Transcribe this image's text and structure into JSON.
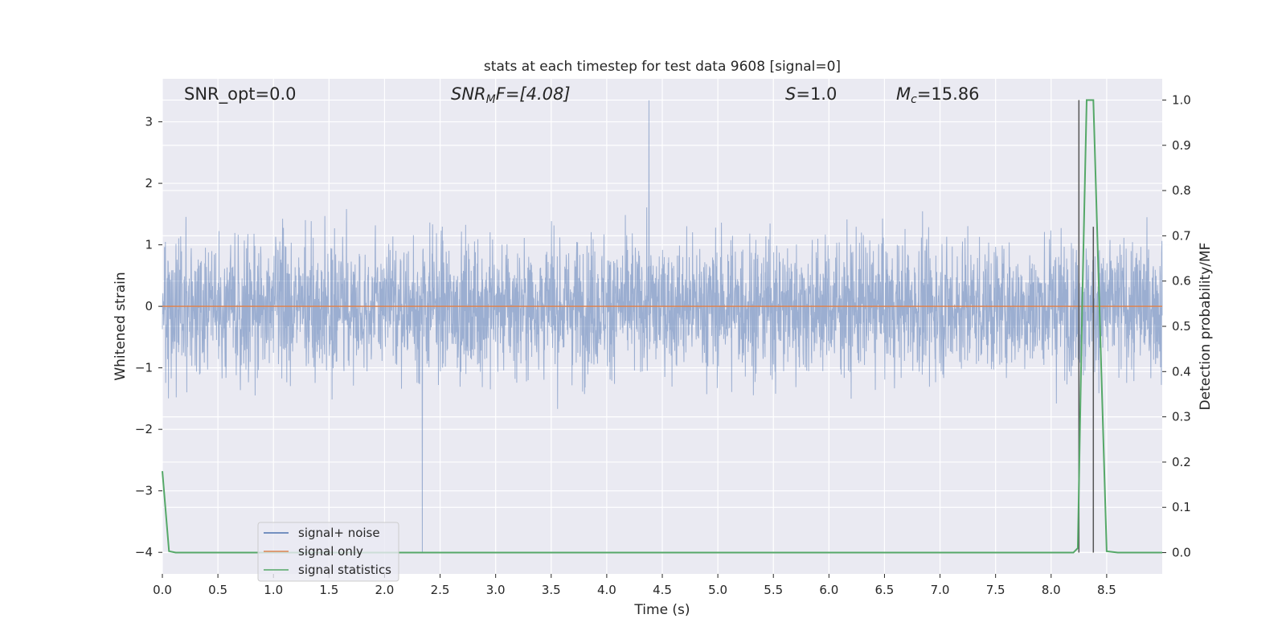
{
  "chart_data": {
    "type": "line",
    "title": "stats at each timestep for test data 9608 [signal=0]",
    "xlabel": "Time (s)",
    "ylabel_left": "Whitened strain",
    "ylabel_right": "Detection probability/MF",
    "xlim": [
      0,
      9.0
    ],
    "ylim_left": [
      -4.35,
      3.7
    ],
    "ylim_right": [
      -0.047,
      1.047
    ],
    "x_ticks": [
      "0.0",
      "0.5",
      "1.0",
      "1.5",
      "2.0",
      "2.5",
      "3.0",
      "3.5",
      "4.0",
      "4.5",
      "5.0",
      "5.5",
      "6.0",
      "6.5",
      "7.0",
      "7.5",
      "8.0",
      "8.5"
    ],
    "y_ticks_left": [
      "−4",
      "−3",
      "−2",
      "−1",
      "0",
      "1",
      "2",
      "3"
    ],
    "y_ticks_right": [
      "0.0",
      "0.1",
      "0.2",
      "0.3",
      "0.4",
      "0.5",
      "0.6",
      "0.7",
      "0.8",
      "0.9",
      "1.0"
    ],
    "grid": true,
    "legend_position": "lower-left",
    "annotations": {
      "snr_opt": "SNR_opt=0.0",
      "snr_mf_base": "SNR",
      "snr_mf_sub": "M",
      "snr_mf_rest": "F=[4.08]",
      "s_base": "S",
      "s_rest": "=1.0",
      "mc_base": "M",
      "mc_sub": "c",
      "mc_rest": "=15.86"
    },
    "legend": [
      {
        "label": "signal+ noise",
        "color": "#4c72b0"
      },
      {
        "label": "signal only",
        "color": "#dd8452"
      },
      {
        "label": "signal statistics",
        "color": "#55a868"
      }
    ],
    "series": [
      {
        "name": "signal+ noise",
        "axis": "left",
        "style": "dense noise envelope",
        "color": "#4c72b0",
        "x_range": [
          0,
          9.0
        ],
        "typical_envelope": [
          -1.5,
          1.6
        ],
        "max_value": 3.35,
        "min_value": -4.0
      },
      {
        "name": "signal only",
        "axis": "left",
        "color": "#dd8452",
        "x": [
          0,
          9.0
        ],
        "y": [
          0,
          0
        ]
      },
      {
        "name": "signal statistics",
        "axis": "right",
        "color": "#55a868",
        "x": [
          0,
          0.06,
          0.12,
          8.15,
          8.2,
          8.24,
          8.28,
          8.32,
          8.38,
          8.44,
          8.5,
          8.6,
          9.0
        ],
        "y": [
          0.18,
          0.003,
          0.0,
          0.0,
          0.0,
          0.01,
          0.55,
          1.0,
          1.0,
          0.5,
          0.003,
          0.0,
          0.0
        ]
      }
    ],
    "markers": {
      "color": "#555555",
      "vertical_lines": [
        {
          "x": 8.25,
          "y_right": [
            0.0,
            1.0
          ]
        },
        {
          "x": 8.38,
          "y_right": [
            0.0,
            0.72
          ]
        }
      ]
    }
  }
}
